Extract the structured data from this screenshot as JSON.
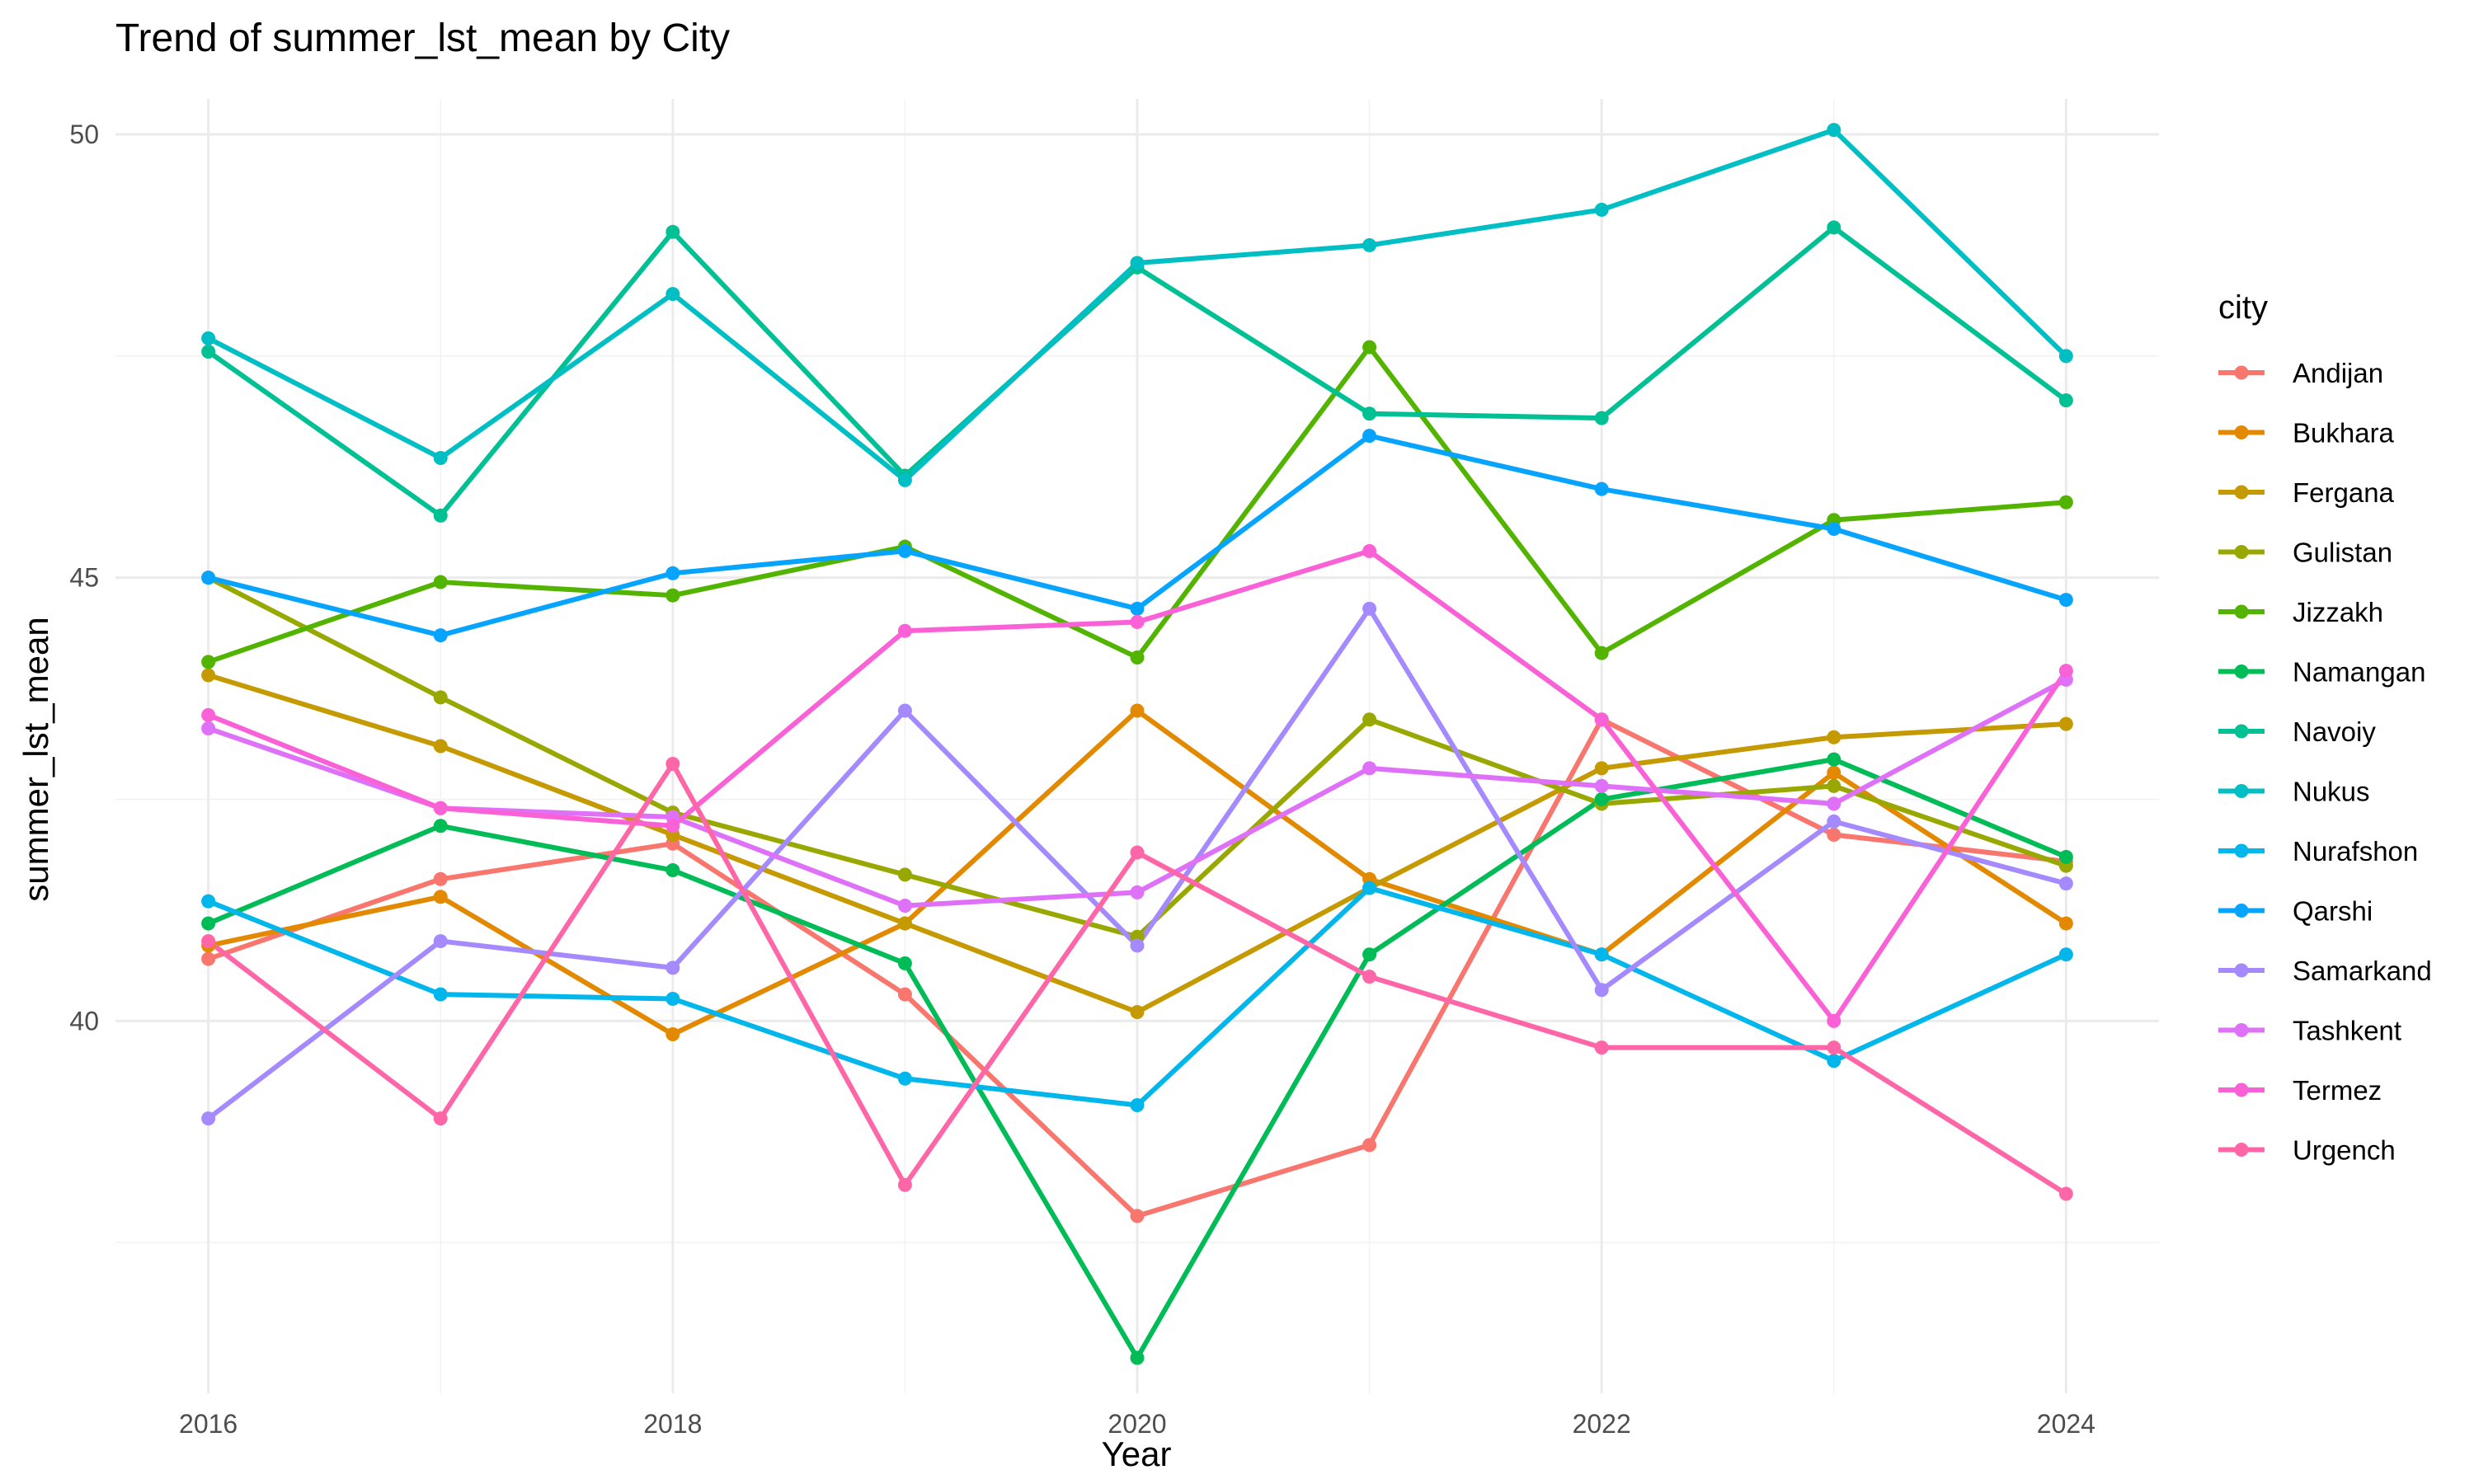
{
  "chart_data": {
    "type": "line",
    "title": "Trend of summer_lst_mean by City",
    "xlabel": "Year",
    "ylabel": "summer_lst_mean",
    "x": [
      2016,
      2017,
      2018,
      2019,
      2020,
      2021,
      2022,
      2023,
      2024
    ],
    "xticks": [
      "2016",
      "2018",
      "2020",
      "2022",
      "2024"
    ],
    "yticks": [
      "40",
      "45",
      "50"
    ],
    "xlim": [
      2015.6,
      2024.4
    ],
    "ylim": [
      35.8,
      50.4
    ],
    "grid": true,
    "legend_title": "city",
    "legend_position": "right",
    "series": [
      {
        "name": "Andijan",
        "color": "#F8766D",
        "values": [
          40.7,
          41.6,
          42.0,
          40.3,
          37.8,
          38.6,
          43.4,
          42.1,
          41.8
        ]
      },
      {
        "name": "Bukhara",
        "color": "#E38900",
        "values": [
          40.85,
          41.4,
          39.85,
          41.1,
          43.5,
          41.6,
          40.75,
          42.8,
          41.1
        ]
      },
      {
        "name": "Fergana",
        "color": "#C49A00",
        "values": [
          43.9,
          43.1,
          42.1,
          41.1,
          40.1,
          41.5,
          42.85,
          43.2,
          43.35
        ]
      },
      {
        "name": "Gulistan",
        "color": "#99A800",
        "values": [
          45.0,
          43.65,
          42.35,
          41.65,
          40.95,
          43.4,
          42.45,
          42.65,
          41.75
        ]
      },
      {
        "name": "Jizzakh",
        "color": "#53B400",
        "values": [
          44.05,
          44.95,
          44.8,
          45.35,
          44.1,
          47.6,
          44.15,
          45.65,
          45.85
        ]
      },
      {
        "name": "Namangan",
        "color": "#00BC56",
        "values": [
          41.1,
          42.2,
          41.7,
          40.65,
          36.2,
          40.75,
          42.5,
          42.95,
          41.85
        ]
      },
      {
        "name": "Navoiy",
        "color": "#00C094",
        "values": [
          47.55,
          45.7,
          48.9,
          46.15,
          48.5,
          46.85,
          46.8,
          48.95,
          47.0
        ]
      },
      {
        "name": "Nukus",
        "color": "#00BFC4",
        "values": [
          47.7,
          46.35,
          48.2,
          46.1,
          48.55,
          48.75,
          49.15,
          50.05,
          47.5
        ]
      },
      {
        "name": "Nurafshon",
        "color": "#00B6EB",
        "values": [
          41.35,
          40.3,
          40.25,
          39.35,
          39.05,
          41.5,
          40.75,
          39.55,
          40.75
        ]
      },
      {
        "name": "Qarshi",
        "color": "#06A4FF",
        "values": [
          45.0,
          44.35,
          45.05,
          45.3,
          44.65,
          46.6,
          46.0,
          45.55,
          44.75
        ]
      },
      {
        "name": "Samarkand",
        "color": "#A58AFF",
        "values": [
          38.9,
          40.9,
          40.6,
          43.5,
          40.85,
          44.65,
          40.35,
          42.25,
          41.55
        ]
      },
      {
        "name": "Tashkent",
        "color": "#DF70F8",
        "values": [
          43.3,
          42.4,
          42.3,
          41.3,
          41.45,
          42.85,
          42.65,
          42.45,
          43.85
        ]
      },
      {
        "name": "Termez",
        "color": "#FB61D7",
        "values": [
          43.45,
          42.4,
          42.2,
          44.4,
          44.5,
          45.3,
          43.4,
          40.0,
          43.95
        ]
      },
      {
        "name": "Urgench",
        "color": "#FF66A8",
        "values": [
          40.9,
          38.9,
          42.9,
          38.15,
          41.9,
          40.5,
          39.7,
          39.7,
          38.05
        ]
      }
    ]
  }
}
